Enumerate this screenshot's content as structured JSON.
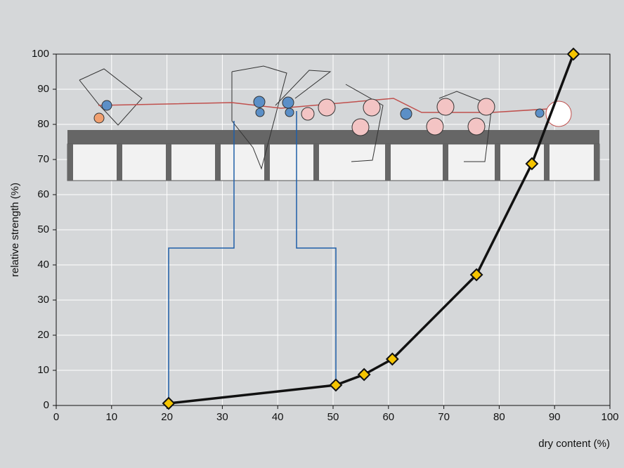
{
  "chart_data": {
    "type": "line",
    "x_label": "dry content (%)",
    "y_label": "relative strength (%)",
    "x": [
      20.3,
      50.5,
      55.6,
      60.7,
      75.9,
      85.9,
      93.4
    ],
    "values": [
      0.6,
      5.8,
      8.8,
      13.2,
      37.2,
      68.8,
      100
    ],
    "color": "#111111",
    "marker_color": "#f5c400",
    "xlim": [
      0,
      100
    ],
    "ylim": [
      0,
      100
    ],
    "xticks": [
      0,
      10,
      20,
      30,
      40,
      50,
      60,
      70,
      80,
      90,
      100
    ],
    "yticks": [
      0,
      10,
      20,
      30,
      40,
      50,
      60,
      70,
      80,
      90,
      100
    ],
    "grid": true
  }
}
